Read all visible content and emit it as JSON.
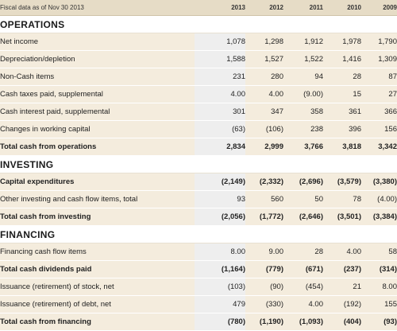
{
  "header": {
    "label": "Fiscal data as of Nov 30 2013",
    "years": [
      "2013",
      "2012",
      "2011",
      "2010",
      "2009"
    ]
  },
  "sections": [
    {
      "title": "OPERATIONS",
      "rows": [
        {
          "label": "Net income",
          "values": [
            "1,078",
            "1,298",
            "1,912",
            "1,978",
            "1,790"
          ],
          "total": false
        },
        {
          "label": "Depreciation/depletion",
          "values": [
            "1,588",
            "1,527",
            "1,522",
            "1,416",
            "1,309"
          ],
          "total": false
        },
        {
          "label": "Non-Cash items",
          "values": [
            "231",
            "280",
            "94",
            "28",
            "87"
          ],
          "total": false
        },
        {
          "label": "Cash taxes paid, supplemental",
          "values": [
            "4.00",
            "4.00",
            "(9.00)",
            "15",
            "27"
          ],
          "total": false
        },
        {
          "label": "Cash interest paid, supplemental",
          "values": [
            "301",
            "347",
            "358",
            "361",
            "366"
          ],
          "total": false
        },
        {
          "label": "Changes in working capital",
          "values": [
            "(63)",
            "(106)",
            "238",
            "396",
            "156"
          ],
          "total": false
        },
        {
          "label": "Total cash from operations",
          "values": [
            "2,834",
            "2,999",
            "3,766",
            "3,818",
            "3,342"
          ],
          "total": true
        }
      ]
    },
    {
      "title": "INVESTING",
      "rows": [
        {
          "label": "Capital expenditures",
          "values": [
            "(2,149)",
            "(2,332)",
            "(2,696)",
            "(3,579)",
            "(3,380)"
          ],
          "total": true
        },
        {
          "label": "Other investing and cash flow items, total",
          "values": [
            "93",
            "560",
            "50",
            "78",
            "(4.00)"
          ],
          "total": false
        },
        {
          "label": "Total cash from investing",
          "values": [
            "(2,056)",
            "(1,772)",
            "(2,646)",
            "(3,501)",
            "(3,384)"
          ],
          "total": true
        }
      ]
    },
    {
      "title": "FINANCING",
      "rows": [
        {
          "label": "Financing cash flow items",
          "values": [
            "8.00",
            "9.00",
            "28",
            "4.00",
            "58"
          ],
          "total": false
        },
        {
          "label": "Total cash dividends paid",
          "values": [
            "(1,164)",
            "(779)",
            "(671)",
            "(237)",
            "(314)"
          ],
          "total": true
        },
        {
          "label": "Issuance (retirement) of stock, net",
          "values": [
            "(103)",
            "(90)",
            "(454)",
            "21",
            "8.00"
          ],
          "total": false
        },
        {
          "label": "Issuance (retirement) of debt, net",
          "values": [
            "479",
            "(330)",
            "4.00",
            "(192)",
            "155"
          ],
          "total": false
        },
        {
          "label": "Total cash from financing",
          "values": [
            "(780)",
            "(1,190)",
            "(1,093)",
            "(404)",
            "(93)"
          ],
          "total": true
        }
      ]
    }
  ],
  "colors": {
    "header_bg": "#e6dcc6",
    "row_bg": "#f4ecdd",
    "current_year_bg": "#eeeeee"
  }
}
